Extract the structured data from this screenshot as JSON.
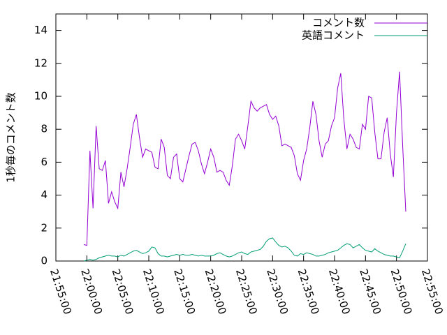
{
  "chart_data": {
    "type": "line",
    "y_label": "1秒毎のコメント数",
    "x": [
      "21:59:30",
      "22:00:00",
      "22:00:30",
      "22:01:00",
      "22:01:30",
      "22:02:00",
      "22:02:30",
      "22:03:00",
      "22:03:30",
      "22:04:00",
      "22:04:30",
      "22:05:00",
      "22:05:30",
      "22:06:00",
      "22:06:30",
      "22:07:00",
      "22:07:30",
      "22:08:00",
      "22:08:30",
      "22:09:00",
      "22:09:30",
      "22:10:00",
      "22:10:30",
      "22:11:00",
      "22:11:30",
      "22:12:00",
      "22:12:30",
      "22:13:00",
      "22:13:30",
      "22:14:00",
      "22:14:30",
      "22:15:00",
      "22:15:30",
      "22:16:00",
      "22:16:30",
      "22:17:00",
      "22:17:30",
      "22:18:00",
      "22:18:30",
      "22:19:00",
      "22:19:30",
      "22:20:00",
      "22:20:30",
      "22:21:00",
      "22:21:30",
      "22:22:00",
      "22:22:30",
      "22:23:00",
      "22:23:30",
      "22:24:00",
      "22:24:30",
      "22:25:00",
      "22:25:30",
      "22:26:00",
      "22:26:30",
      "22:27:00",
      "22:27:30",
      "22:28:00",
      "22:28:30",
      "22:29:00",
      "22:29:30",
      "22:30:00",
      "22:30:30",
      "22:31:00",
      "22:31:30",
      "22:32:00",
      "22:32:30",
      "22:33:00",
      "22:33:30",
      "22:34:00",
      "22:34:30",
      "22:35:00",
      "22:35:30",
      "22:36:00",
      "22:36:30",
      "22:37:00",
      "22:37:30",
      "22:38:00",
      "22:38:30",
      "22:39:00",
      "22:39:30",
      "22:40:00",
      "22:40:30",
      "22:41:00",
      "22:41:30",
      "22:42:00",
      "22:42:30",
      "22:43:00",
      "22:43:30",
      "22:44:00",
      "22:44:30",
      "22:45:00",
      "22:45:30",
      "22:46:00",
      "22:46:30",
      "22:47:00",
      "22:47:30",
      "22:48:00",
      "22:48:30",
      "22:49:00",
      "22:49:30",
      "22:50:00",
      "22:50:30",
      "22:51:00",
      "22:51:30"
    ],
    "series": [
      {
        "name": "コメント数",
        "color": "#9400d3",
        "values": [
          1.0,
          0.95,
          6.7,
          3.2,
          8.2,
          5.6,
          5.5,
          6.1,
          3.5,
          4.2,
          3.6,
          3.2,
          5.4,
          4.5,
          5.6,
          6.9,
          8.3,
          8.9,
          7.5,
          6.3,
          6.8,
          6.7,
          6.6,
          5.7,
          5.6,
          7.4,
          6.9,
          5.2,
          5.0,
          6.3,
          6.5,
          5.0,
          4.8,
          5.6,
          6.4,
          7.1,
          7.2,
          6.7,
          5.9,
          5.3,
          6.0,
          6.8,
          6.3,
          5.4,
          5.5,
          5.4,
          4.9,
          4.6,
          5.8,
          7.4,
          7.7,
          7.3,
          6.8,
          8.2,
          9.7,
          9.3,
          9.1,
          9.3,
          9.4,
          9.5,
          8.9,
          8.6,
          8.8,
          8.2,
          7.0,
          7.1,
          7.0,
          6.9,
          6.4,
          5.3,
          4.9,
          6.1,
          6.8,
          8.1,
          9.7,
          8.9,
          7.3,
          6.3,
          7.1,
          7.3,
          8.2,
          8.7,
          10.5,
          11.4,
          8.6,
          6.8,
          7.7,
          7.4,
          6.9,
          6.8,
          8.3,
          8.0,
          10.0,
          9.9,
          7.8,
          6.2,
          6.2,
          7.8,
          8.7,
          6.5,
          5.1,
          9.0,
          11.5,
          7.0,
          3.0
        ]
      },
      {
        "name": "英語コメント",
        "color": "#009e73",
        "values": [
          0,
          0.05,
          0.1,
          0.05,
          0.1,
          0.2,
          0.25,
          0.3,
          0.35,
          0.3,
          0.3,
          0.25,
          0.35,
          0.3,
          0.4,
          0.5,
          0.6,
          0.65,
          0.55,
          0.45,
          0.5,
          0.6,
          0.85,
          0.8,
          0.45,
          0.3,
          0.3,
          0.25,
          0.3,
          0.35,
          0.4,
          0.35,
          0.4,
          0.35,
          0.35,
          0.4,
          0.35,
          0.3,
          0.35,
          0.3,
          0.3,
          0.3,
          0.35,
          0.45,
          0.5,
          0.4,
          0.3,
          0.25,
          0.3,
          0.4,
          0.5,
          0.55,
          0.45,
          0.4,
          0.55,
          0.6,
          0.65,
          0.7,
          0.9,
          1.2,
          1.35,
          1.4,
          1.15,
          0.95,
          0.85,
          0.9,
          0.8,
          0.6,
          0.35,
          0.3,
          0.45,
          0.4,
          0.5,
          0.45,
          0.4,
          0.3,
          0.3,
          0.35,
          0.4,
          0.5,
          0.55,
          0.6,
          0.65,
          0.8,
          0.95,
          1.05,
          1.0,
          0.8,
          0.9,
          1.0,
          0.8,
          0.65,
          0.6,
          0.55,
          0.75,
          0.6,
          0.5,
          0.4,
          0.35,
          0.3,
          0.3,
          0.25,
          0.2,
          0.6,
          1.05
        ]
      }
    ],
    "xlim": [
      "21:55:00",
      "22:55:00"
    ],
    "xticks": [
      "21:55:00",
      "22:00:00",
      "22:05:00",
      "22:10:00",
      "22:15:00",
      "22:20:00",
      "22:25:00",
      "22:30:00",
      "22:35:00",
      "22:40:00",
      "22:45:00",
      "22:50:00",
      "22:55:00"
    ],
    "ylim": [
      0,
      15
    ],
    "yticks": [
      0,
      2,
      4,
      6,
      8,
      10,
      12,
      14
    ],
    "legend": "top-right"
  }
}
